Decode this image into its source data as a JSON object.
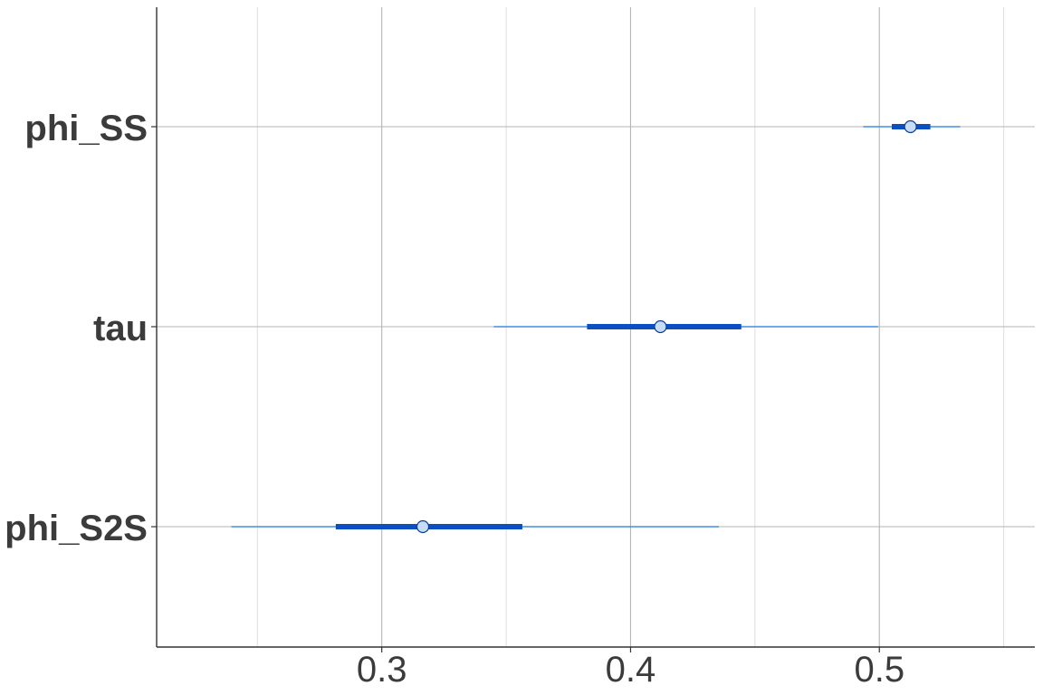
{
  "chart_data": {
    "type": "interval",
    "title": "",
    "xlabel": "",
    "ylabel": "",
    "xlim": [
      0.2095,
      0.5625
    ],
    "x_ticks": [
      0.3,
      0.4,
      0.5
    ],
    "x_tick_labels": [
      "0.3",
      "0.4",
      "0.5"
    ],
    "x_minor_gridlines": [
      0.25,
      0.35,
      0.45,
      0.55
    ],
    "grid": true,
    "parameters": [
      {
        "label": "phi_SS",
        "median": 0.5125,
        "inner": [
          0.505,
          0.5205
        ],
        "outer": [
          0.4935,
          0.5325
        ]
      },
      {
        "label": "tau",
        "median": 0.412,
        "inner": [
          0.3825,
          0.4445
        ],
        "outer": [
          0.345,
          0.4995
        ]
      },
      {
        "label": "phi_S2S",
        "median": 0.3165,
        "inner": [
          0.2815,
          0.3565
        ],
        "outer": [
          0.2395,
          0.4355
        ]
      }
    ],
    "colors": {
      "outer_line": "#3d8ee8",
      "inner_line": "#0b4fc2",
      "point_fill": "#c6dcf7",
      "point_stroke": "#0b3d91",
      "grid_major": "#b5b5b5",
      "grid_minor": "#dcdcdc",
      "axis": "#333333",
      "text": "#3b3b3b"
    }
  }
}
